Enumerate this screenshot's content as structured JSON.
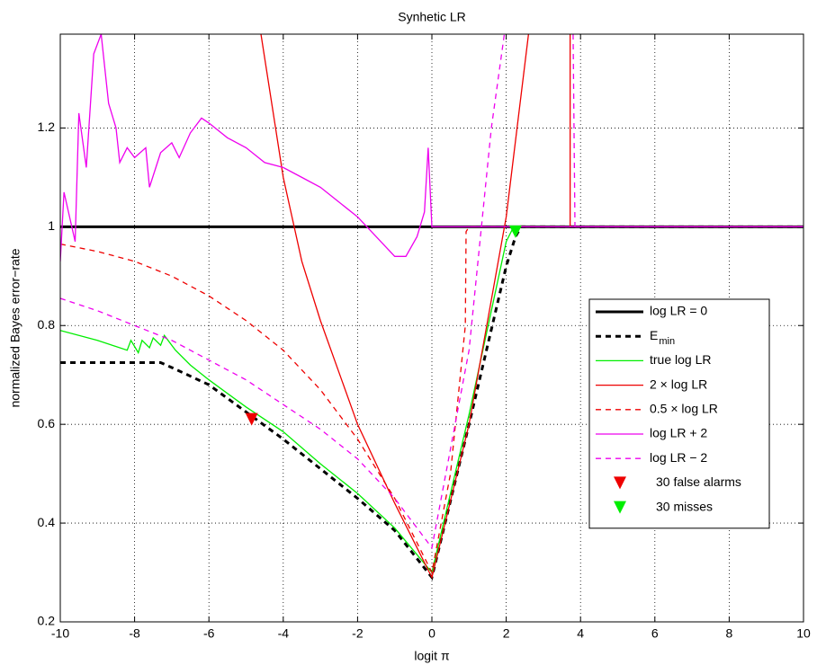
{
  "chart_data": {
    "type": "line",
    "title": "Synhetic LR",
    "xlabel": "logit π",
    "ylabel": "normalized Bayes error−rate",
    "xlim": [
      -10,
      10
    ],
    "ylim": [
      0.2,
      1.39
    ],
    "xticks": [
      -10,
      -8,
      -6,
      -4,
      -2,
      0,
      2,
      4,
      6,
      8,
      10
    ],
    "yticks": [
      0.2,
      0.4,
      0.6,
      0.8,
      1,
      1.2
    ],
    "grid": true,
    "legend": "right",
    "series": [
      {
        "name": "log LR = 0",
        "color": "#000000",
        "style": "solid",
        "width": 3,
        "x": [
          -10,
          10
        ],
        "values": [
          1,
          1
        ]
      },
      {
        "name": "E",
        "subscript": "min",
        "color": "#000000",
        "style": "dashed",
        "width": 3,
        "x": [
          -10,
          -7.3,
          -7,
          -6,
          -5,
          -4,
          -3,
          -2,
          -1,
          0,
          1,
          2,
          2.25,
          2.4,
          10
        ],
        "values": [
          0.725,
          0.725,
          0.715,
          0.68,
          0.625,
          0.57,
          0.51,
          0.45,
          0.385,
          0.29,
          0.6,
          0.92,
          0.98,
          1,
          1
        ]
      },
      {
        "name": "true log LR",
        "color": "#00ee00",
        "style": "solid",
        "width": 1.3,
        "x": [
          -10,
          -9,
          -8.2,
          -8.1,
          -7.9,
          -7.8,
          -7.6,
          -7.5,
          -7.3,
          -7.2,
          -7.0,
          -6.9,
          -6.5,
          -6,
          -5,
          -4,
          -3,
          -2,
          -1,
          0,
          1,
          2,
          2.2,
          10
        ],
        "values": [
          0.79,
          0.77,
          0.75,
          0.77,
          0.745,
          0.77,
          0.755,
          0.775,
          0.76,
          0.78,
          0.76,
          0.75,
          0.72,
          0.69,
          0.635,
          0.585,
          0.52,
          0.46,
          0.39,
          0.3,
          0.62,
          0.97,
          1,
          1
        ]
      },
      {
        "name": "2 × log LR",
        "color": "#ee0000",
        "style": "solid",
        "width": 1.3,
        "x": [
          -4.6,
          -4,
          -3.5,
          -3,
          -2,
          -1,
          0,
          1,
          2,
          2.6,
          null,
          3.72,
          3.72,
          10
        ],
        "values": [
          1.39,
          1.1,
          0.93,
          0.81,
          0.6,
          0.44,
          0.29,
          0.6,
          1.02,
          1.39,
          null,
          1.39,
          1,
          1
        ]
      },
      {
        "name": "0.5 × log LR",
        "color": "#ee0000",
        "style": "dashed",
        "width": 1.3,
        "x": [
          -10,
          -9,
          -8,
          -7,
          -6,
          -5,
          -4,
          -3,
          -2,
          -1,
          0,
          0.5,
          0.9,
          0.92,
          1,
          10
        ],
        "values": [
          0.965,
          0.95,
          0.93,
          0.9,
          0.86,
          0.81,
          0.75,
          0.67,
          0.57,
          0.45,
          0.3,
          0.5,
          0.8,
          0.99,
          1,
          1
        ]
      },
      {
        "name": "log LR + 2",
        "color": "#ee00ee",
        "style": "solid",
        "width": 1.3,
        "x": [
          -10,
          -9.9,
          -9.6,
          -9.5,
          -9.3,
          -9.1,
          -8.9,
          -8.7,
          -8.5,
          -8.4,
          -8.2,
          -8,
          -7.7,
          -7.6,
          -7.3,
          -7,
          -6.8,
          -6.5,
          -6.2,
          -6,
          -5.5,
          -5,
          -4.5,
          -4,
          -3.5,
          -3,
          -2.5,
          -2,
          -1.5,
          -1,
          -0.7,
          -0.4,
          -0.2,
          -0.1,
          0,
          10
        ],
        "values": [
          0.93,
          1.07,
          0.97,
          1.23,
          1.12,
          1.35,
          1.39,
          1.25,
          1.2,
          1.13,
          1.16,
          1.14,
          1.16,
          1.08,
          1.15,
          1.17,
          1.14,
          1.19,
          1.22,
          1.21,
          1.18,
          1.16,
          1.13,
          1.12,
          1.1,
          1.08,
          1.05,
          1.02,
          0.98,
          0.94,
          0.94,
          0.98,
          1.03,
          1.16,
          1,
          1
        ]
      },
      {
        "name": "log LR − 2",
        "color": "#ee00ee",
        "style": "dashed",
        "width": 1.3,
        "x": [
          -10,
          -9,
          -8,
          -7,
          -6,
          -5,
          -4,
          -3,
          -2,
          -1,
          0,
          1,
          1.6,
          1.95,
          null,
          3.8,
          3.85,
          10
        ],
        "values": [
          0.855,
          0.83,
          0.8,
          0.77,
          0.73,
          0.69,
          0.64,
          0.59,
          0.53,
          0.45,
          0.35,
          0.75,
          1.2,
          1.39,
          null,
          1.39,
          1,
          1
        ]
      }
    ],
    "markers": [
      {
        "name": "30 false alarms",
        "color": "#ee0000",
        "x": -4.85,
        "y": 0.61
      },
      {
        "name": "30 misses",
        "color": "#00ee00",
        "x": 2.25,
        "y": 0.99
      }
    ]
  }
}
